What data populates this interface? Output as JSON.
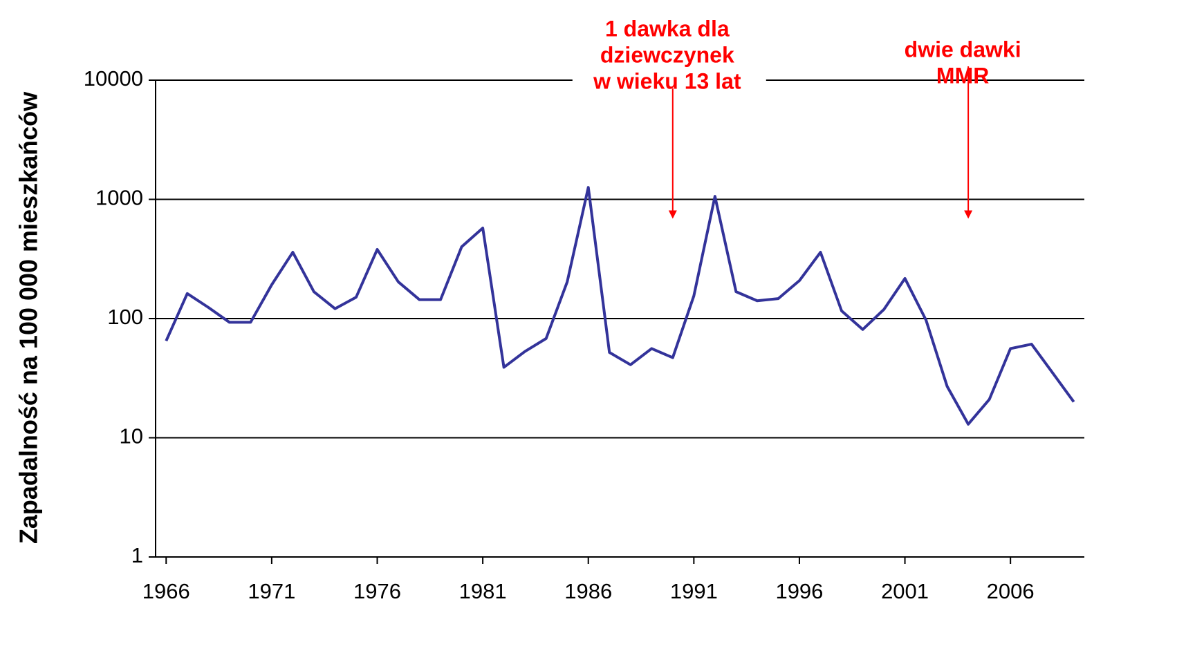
{
  "chart_data": {
    "type": "line",
    "y_label": "Zapadalność na 100 000 mieszkańców",
    "x": [
      1966,
      1967,
      1968,
      1969,
      1970,
      1971,
      1972,
      1973,
      1974,
      1975,
      1976,
      1977,
      1978,
      1979,
      1980,
      1981,
      1982,
      1983,
      1984,
      1985,
      1986,
      1987,
      1988,
      1989,
      1990,
      1991,
      1992,
      1993,
      1994,
      1995,
      1996,
      1997,
      1998,
      1999,
      2000,
      2001,
      2002,
      2003,
      2004,
      2005,
      2006,
      2007,
      2008,
      2009
    ],
    "series": [
      {
        "color": "#33339a",
        "values": [
          65,
          162,
          124,
          93,
          93,
          192,
          360,
          168,
          121,
          151,
          380,
          203,
          144,
          144,
          400,
          575,
          39,
          53,
          68,
          203,
          1260,
          52,
          41,
          56,
          47,
          155,
          1060,
          168,
          141,
          147,
          208,
          360,
          116,
          81,
          119,
          217,
          97,
          27,
          13,
          21,
          56,
          61,
          35,
          20
        ]
      }
    ],
    "xlim": [
      1965.5,
      2009.5
    ],
    "xticks": [
      1966,
      1971,
      1976,
      1981,
      1986,
      1991,
      1996,
      2001,
      2006
    ],
    "ylim": [
      1,
      10000
    ],
    "yticks": [
      1,
      10,
      100,
      1000,
      10000
    ],
    "log_y": true,
    "grid": true,
    "annotations": [
      {
        "lines": [
          "1 dawka dla",
          "dziewczynek",
          "w wieku 13 lat"
        ],
        "x": 1990,
        "color": "#ff0000"
      },
      {
        "lines": [
          "dwie dawki",
          "MMR"
        ],
        "x": 2004,
        "color": "#ff0000"
      }
    ]
  }
}
